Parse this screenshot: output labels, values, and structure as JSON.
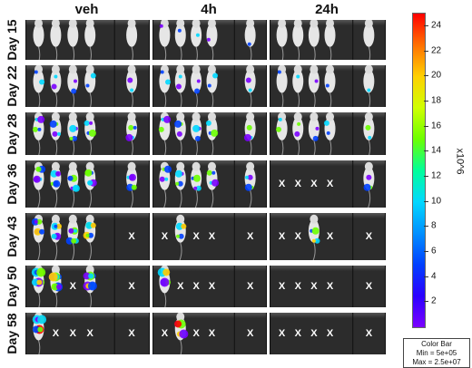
{
  "columns": [
    "veh",
    "4h",
    "24h"
  ],
  "rows": [
    {
      "label": "Day 15",
      "removed": [
        [],
        [],
        []
      ]
    },
    {
      "label": "Day 22",
      "removed": [
        [],
        [],
        []
      ]
    },
    {
      "label": "Day 28",
      "removed": [
        [],
        [],
        []
      ]
    },
    {
      "label": "Day 36",
      "removed": [
        [],
        [],
        [
          0,
          1,
          2,
          3
        ]
      ]
    },
    {
      "label": "Day 43",
      "removed": [
        [
          4
        ],
        [
          0,
          2,
          3,
          4
        ],
        [
          0,
          1,
          3,
          4
        ]
      ]
    },
    {
      "label": "Day 50",
      "removed": [
        [
          2,
          4
        ],
        [
          1,
          2,
          3,
          4
        ],
        [
          0,
          1,
          2,
          3,
          4
        ]
      ]
    },
    {
      "label": "Day 58",
      "removed": [
        [
          1,
          2,
          3,
          4
        ],
        [
          0,
          2,
          3,
          4
        ],
        [
          0,
          1,
          2,
          3,
          4
        ]
      ]
    }
  ],
  "mark_symbol": "X",
  "colorbar": {
    "ticks": [
      "24",
      "22",
      "20",
      "18",
      "16",
      "14",
      "12",
      "10",
      "8",
      "6",
      "4",
      "2"
    ],
    "unit": "x10^6",
    "range": [
      0,
      25
    ],
    "legend_title": "Color Bar",
    "legend_min": "Min = 5e+05",
    "legend_max": "Max = 2.5e+07",
    "colors": [
      "#7b00ff",
      "#0040ff",
      "#00d8ff",
      "#6cff00",
      "#ffd000",
      "#ff0000"
    ]
  }
}
